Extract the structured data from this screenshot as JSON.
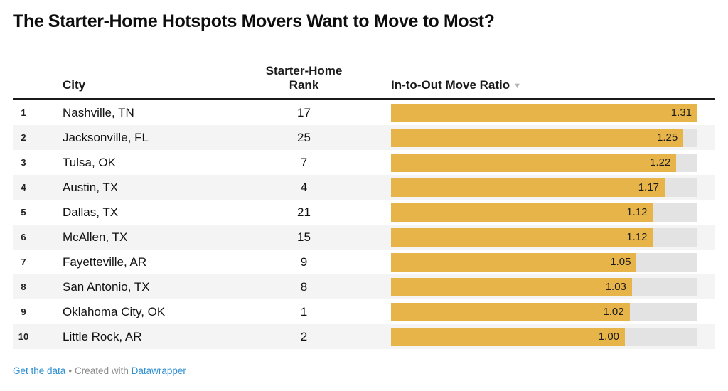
{
  "title": "The Starter-Home Hotspots Movers Want to Move to Most?",
  "table": {
    "header": {
      "city": "City",
      "rank": "Starter-Home Rank",
      "ratio": "In-to-Out Move Ratio",
      "sort_icon": "▼"
    },
    "rows": [
      {
        "index": "1",
        "city": "Nashville, TN",
        "rank": "17",
        "ratio": "1.31"
      },
      {
        "index": "2",
        "city": "Jacksonville, FL",
        "rank": "25",
        "ratio": "1.25"
      },
      {
        "index": "3",
        "city": "Tulsa, OK",
        "rank": "7",
        "ratio": "1.22"
      },
      {
        "index": "4",
        "city": "Austin, TX",
        "rank": "4",
        "ratio": "1.17"
      },
      {
        "index": "5",
        "city": "Dallas, TX",
        "rank": "21",
        "ratio": "1.12"
      },
      {
        "index": "6",
        "city": "McAllen, TX",
        "rank": "15",
        "ratio": "1.12"
      },
      {
        "index": "7",
        "city": "Fayetteville, AR",
        "rank": "9",
        "ratio": "1.05"
      },
      {
        "index": "8",
        "city": "San Antonio, TX",
        "rank": "8",
        "ratio": "1.03"
      },
      {
        "index": "9",
        "city": "Oklahoma City, OK",
        "rank": "1",
        "ratio": "1.02"
      },
      {
        "index": "10",
        "city": "Little Rock, AR",
        "rank": "2",
        "ratio": "1.00"
      }
    ]
  },
  "footer": {
    "get_data_label": "Get the data",
    "separator": "•",
    "created_with": "Created with",
    "brand": "Datawrapper"
  },
  "colors": {
    "bar": "#e7b44a",
    "bar_track": "#e3e3e4",
    "row_alt": "#f4f4f4",
    "header_rule": "#1a1a1a",
    "link_blue": "#2e8fd2",
    "footer_gray": "#8d8d8d"
  },
  "chart_data": {
    "type": "bar",
    "orientation": "horizontal",
    "title": "The Starter-Home Hotspots Movers Want to Move to Most?",
    "categories": [
      "Nashville, TN",
      "Jacksonville, FL",
      "Tulsa, OK",
      "Austin, TX",
      "Dallas, TX",
      "McAllen, TX",
      "Fayetteville, AR",
      "San Antonio, TX",
      "Oklahoma City, OK",
      "Little Rock, AR"
    ],
    "series": [
      {
        "name": "Starter-Home Rank",
        "values": [
          17,
          25,
          7,
          4,
          21,
          15,
          9,
          8,
          1,
          2
        ]
      },
      {
        "name": "In-to-Out Move Ratio",
        "values": [
          1.31,
          1.25,
          1.22,
          1.17,
          1.12,
          1.12,
          1.05,
          1.03,
          1.02,
          1.0
        ]
      }
    ],
    "bar_series": "In-to-Out Move Ratio",
    "xmax": 1.31,
    "sort": "In-to-Out Move Ratio descending",
    "value_labels": "inside-end",
    "grid": false,
    "legend": "none"
  }
}
